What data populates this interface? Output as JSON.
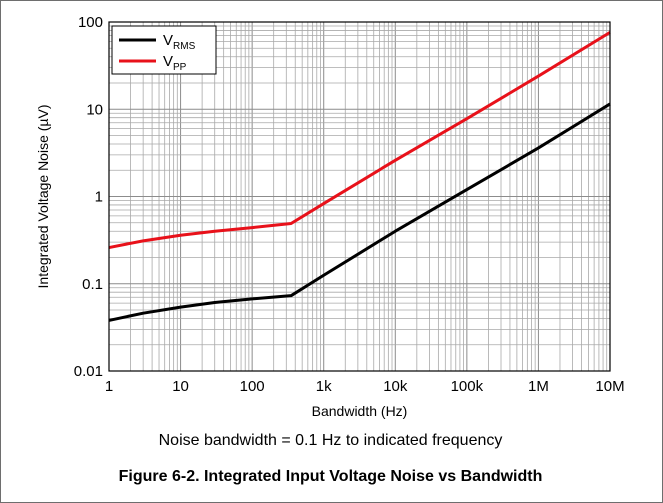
{
  "chart_data": {
    "type": "line",
    "x_scale": "log",
    "y_scale": "log",
    "xlabel": "Bandwidth (Hz)",
    "ylabel": "Integrated Voltage Noise (µV)",
    "xlim": [
      1,
      10000000
    ],
    "ylim": [
      0.01,
      100
    ],
    "x_ticks": [
      {
        "value": 1,
        "label": "1"
      },
      {
        "value": 10,
        "label": "10"
      },
      {
        "value": 100,
        "label": "100"
      },
      {
        "value": 1000,
        "label": "1k"
      },
      {
        "value": 10000,
        "label": "10k"
      },
      {
        "value": 100000,
        "label": "100k"
      },
      {
        "value": 1000000,
        "label": "1M"
      },
      {
        "value": 10000000,
        "label": "10M"
      }
    ],
    "y_ticks": [
      {
        "value": 0.01,
        "label": "0.01"
      },
      {
        "value": 0.1,
        "label": "0.1"
      },
      {
        "value": 1,
        "label": "1"
      },
      {
        "value": 10,
        "label": "10"
      },
      {
        "value": 100,
        "label": "100"
      }
    ],
    "grid": true,
    "legend_position": "top-left",
    "series": [
      {
        "name": "V",
        "subscript": "RMS",
        "color": "#000000",
        "x": [
          1,
          3,
          10,
          30,
          100,
          350,
          1000,
          10000,
          100000,
          1000000,
          10000000
        ],
        "y": [
          0.038,
          0.046,
          0.054,
          0.061,
          0.067,
          0.073,
          0.125,
          0.4,
          1.2,
          3.6,
          11.5
        ]
      },
      {
        "name": "V",
        "subscript": "PP",
        "color": "#e8111a",
        "x": [
          1,
          3,
          10,
          30,
          100,
          350,
          1000,
          10000,
          100000,
          1000000,
          10000000
        ],
        "y": [
          0.26,
          0.31,
          0.36,
          0.4,
          0.44,
          0.49,
          0.83,
          2.6,
          7.8,
          24,
          76
        ]
      }
    ]
  },
  "note": "Noise bandwidth = 0.1 Hz to indicated frequency",
  "caption": "Figure 6-2. Integrated Input Voltage Noise vs Bandwidth"
}
